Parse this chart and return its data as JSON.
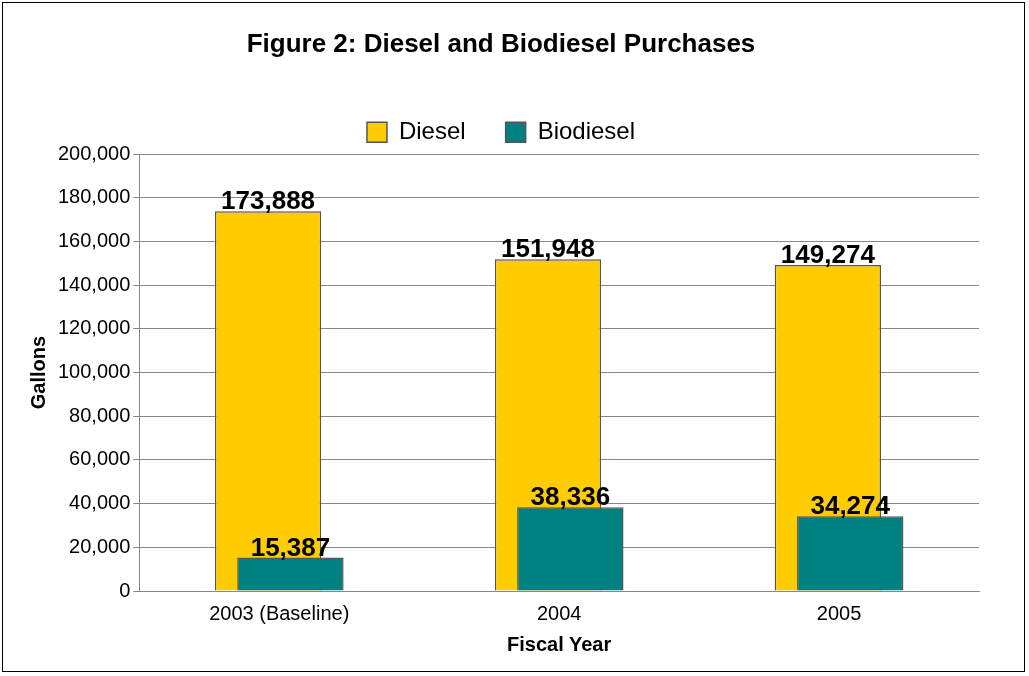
{
  "chart_data": {
    "type": "bar",
    "title": "Figure 2: Diesel and Biodiesel Purchases",
    "xlabel": "Fiscal Year",
    "ylabel": "Gallons",
    "categories": [
      "2003 (Baseline)",
      "2004",
      "2005"
    ],
    "series": [
      {
        "name": "Diesel",
        "color": "#ffcc00",
        "values": [
          173888,
          151948,
          149274
        ],
        "value_labels": [
          "173,888",
          "151,948",
          "149,274"
        ]
      },
      {
        "name": "Biodiesel",
        "color": "#008080",
        "values": [
          15387,
          38336,
          34274
        ],
        "value_labels": [
          "15,387",
          "38,336",
          "34,274"
        ]
      }
    ],
    "ylim": [
      0,
      200000
    ],
    "yticks": [
      {
        "value": 0,
        "label": "0"
      },
      {
        "value": 20000,
        "label": "20,000"
      },
      {
        "value": 40000,
        "label": "40,000"
      },
      {
        "value": 60000,
        "label": "60,000"
      },
      {
        "value": 80000,
        "label": "80,000"
      },
      {
        "value": 100000,
        "label": "100,000"
      },
      {
        "value": 120000,
        "label": "120,000"
      },
      {
        "value": 140000,
        "label": "140,000"
      },
      {
        "value": 160000,
        "label": "160,000"
      },
      {
        "value": 180000,
        "label": "180,000"
      },
      {
        "value": 200000,
        "label": "200,000"
      }
    ],
    "grid": "y",
    "legend": "top"
  }
}
